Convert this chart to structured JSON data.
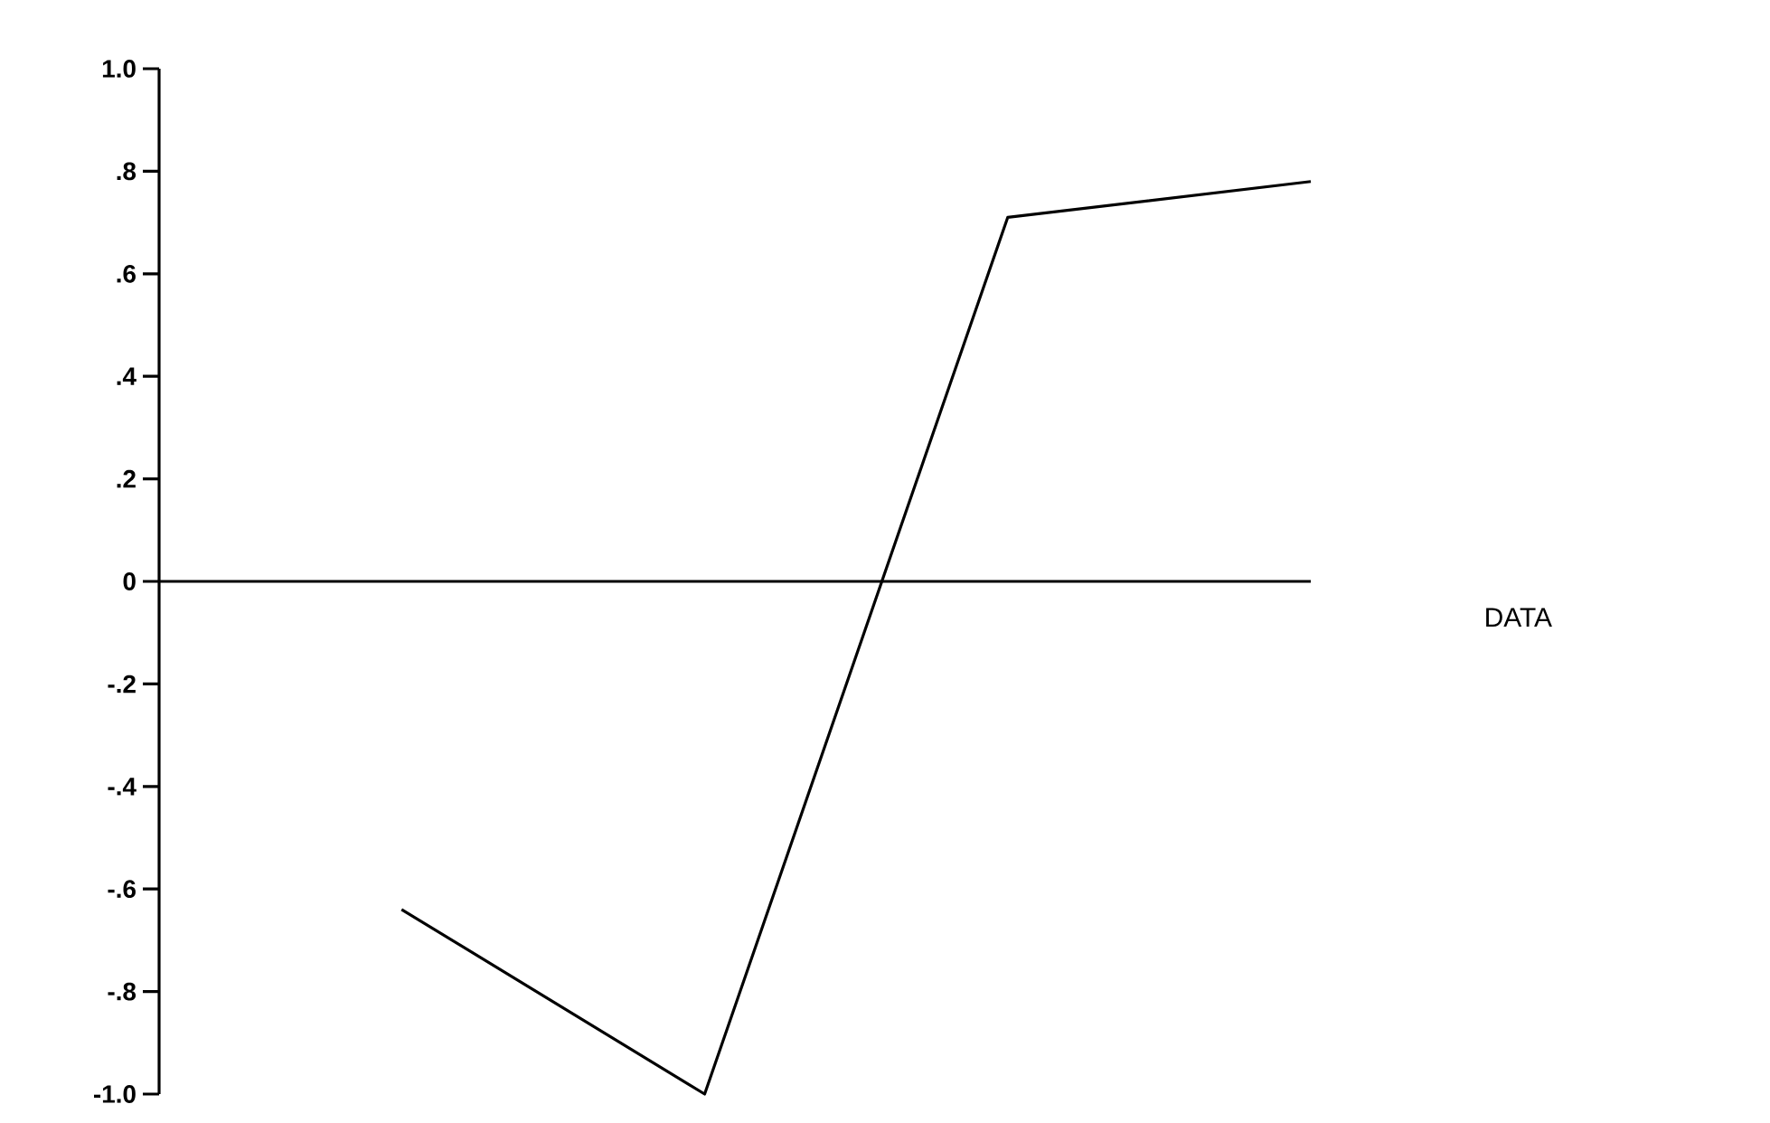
{
  "chart_data": {
    "type": "line",
    "categories": [
      null,
      null,
      null,
      null
    ],
    "series": [
      {
        "color": "#000000",
        "values": [
          -0.64,
          -1.0,
          0.71,
          0.78
        ]
      }
    ],
    "ylim": [
      -1.0,
      1.0
    ],
    "yticks": [
      {
        "value": -1.0,
        "label": "-1.0"
      },
      {
        "value": -0.8,
        "label": "-.8"
      },
      {
        "value": -0.6,
        "label": "-.6"
      },
      {
        "value": -0.4,
        "label": "-.4"
      },
      {
        "value": -0.2,
        "label": "-.2"
      },
      0,
      {
        "value": 0.2,
        "label": ".2"
      },
      {
        "value": 0.4,
        "label": ".4"
      },
      {
        "value": 0.6,
        "label": ".6"
      },
      {
        "value": 0.8,
        "label": ".8"
      },
      {
        "value": 1.0,
        "label": "1.0"
      }
    ],
    "ref_lines": [
      {
        "axis": "y",
        "value": 0,
        "color": "#000000"
      }
    ],
    "annotations": [
      "DATA"
    ],
    "marker": "none",
    "line_style": "solid",
    "tick_labels": "y"
  }
}
